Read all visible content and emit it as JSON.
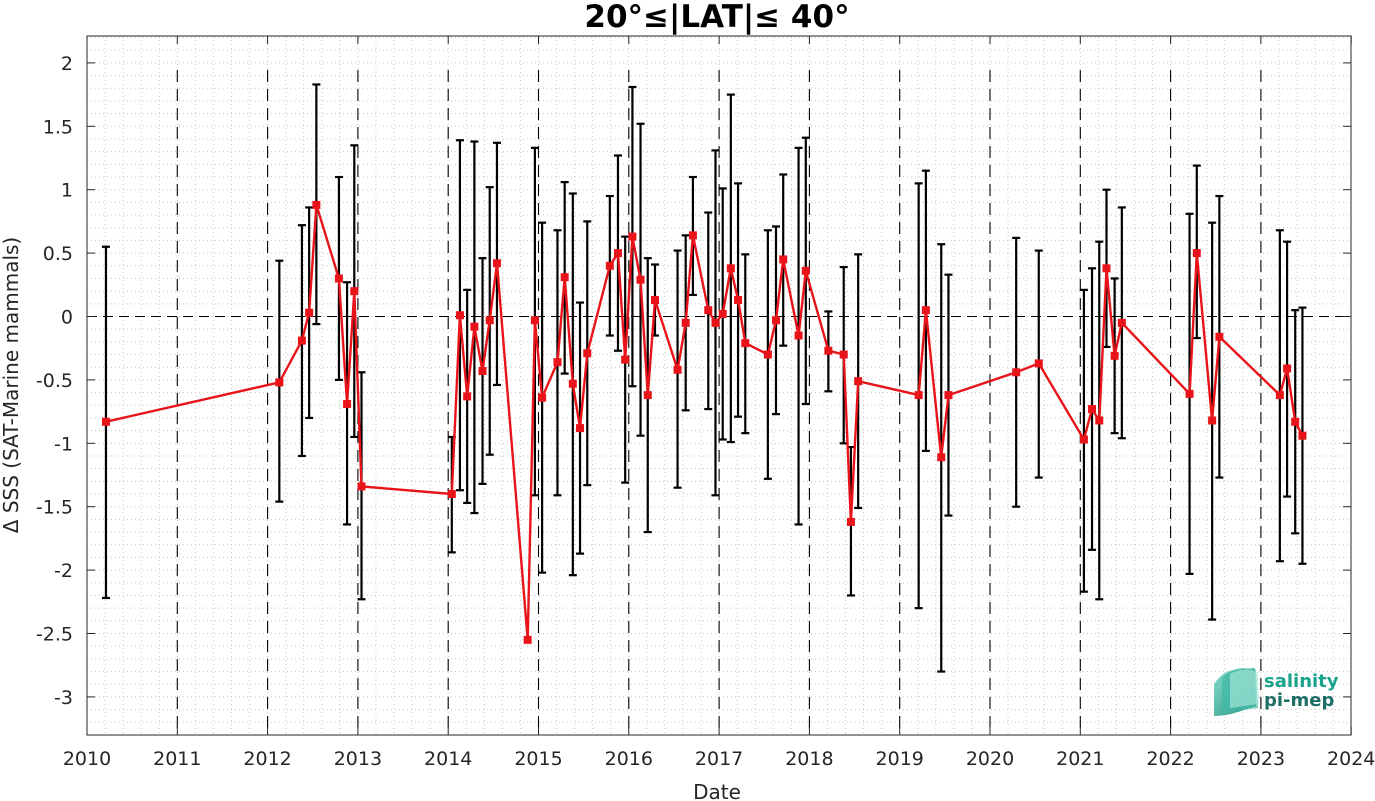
{
  "chart_data": {
    "type": "scatter",
    "title": "20°≤|LAT|≤ 40°",
    "xlabel": "Date",
    "ylabel": "Δ SSS (SAT-Marine mammals)",
    "xlim": [
      2010,
      2024
    ],
    "ylim": [
      -3.3,
      2.25
    ],
    "xticks": [
      2010,
      2011,
      2012,
      2013,
      2014,
      2015,
      2016,
      2017,
      2018,
      2019,
      2020,
      2021,
      2022,
      2023,
      2024
    ],
    "xtick_labels": [
      "2010",
      "2011",
      "2012",
      "2013",
      "2014",
      "2015",
      "2016",
      "2017",
      "2018",
      "2019",
      "2020",
      "2021",
      "2022",
      "2023",
      "2024"
    ],
    "yticks": [
      2,
      1.5,
      1,
      0.5,
      0,
      -0.5,
      -1,
      -1.5,
      -2,
      -2.5,
      -3
    ],
    "ytick_labels": [
      "2",
      "1.5",
      "1",
      "0.5",
      "0",
      "-0.5",
      "-1",
      "-1.5",
      "-2",
      "-2.5",
      "-3"
    ],
    "grid": "minor dotted",
    "zero_line": true,
    "year_boundaries": [
      2011,
      2012,
      2013,
      2014,
      2015,
      2016,
      2017,
      2018,
      2019,
      2020,
      2021,
      2022,
      2023
    ],
    "series": [
      {
        "line_color": "#e8141a",
        "errorbar_color": "#000000",
        "points": [
          {
            "x": 2010.21,
            "y": -0.83,
            "lo": -2.22,
            "hi": 0.55
          },
          {
            "x": 2012.13,
            "y": -0.52,
            "lo": -1.46,
            "hi": 0.44
          },
          {
            "x": 2012.38,
            "y": -0.19,
            "lo": -1.1,
            "hi": 0.72
          },
          {
            "x": 2012.46,
            "y": 0.03,
            "lo": -0.8,
            "hi": 0.86
          },
          {
            "x": 2012.54,
            "y": 0.88,
            "lo": -0.06,
            "hi": 1.83
          },
          {
            "x": 2012.79,
            "y": 0.3,
            "lo": -0.5,
            "hi": 1.1
          },
          {
            "x": 2012.88,
            "y": -0.69,
            "lo": -1.64,
            "hi": 0.27
          },
          {
            "x": 2012.96,
            "y": 0.2,
            "lo": -0.95,
            "hi": 1.35
          },
          {
            "x": 2013.04,
            "y": -1.34,
            "lo": -2.23,
            "hi": -0.44
          },
          {
            "x": 2014.04,
            "y": -1.4,
            "lo": -1.86,
            "hi": -0.95
          },
          {
            "x": 2014.13,
            "y": 0.01,
            "lo": -1.37,
            "hi": 1.39
          },
          {
            "x": 2014.21,
            "y": -0.63,
            "lo": -1.47,
            "hi": 0.21
          },
          {
            "x": 2014.29,
            "y": -0.08,
            "lo": -1.55,
            "hi": 1.38
          },
          {
            "x": 2014.38,
            "y": -0.43,
            "lo": -1.32,
            "hi": 0.46
          },
          {
            "x": 2014.46,
            "y": -0.03,
            "lo": -1.09,
            "hi": 1.02
          },
          {
            "x": 2014.54,
            "y": 0.42,
            "lo": -0.54,
            "hi": 1.37
          },
          {
            "x": 2014.88,
            "y": -2.55,
            "lo": -2.55,
            "hi": -2.55
          },
          {
            "x": 2014.96,
            "y": -0.03,
            "lo": -1.41,
            "hi": 1.33
          },
          {
            "x": 2015.04,
            "y": -0.64,
            "lo": -2.02,
            "hi": 0.74
          },
          {
            "x": 2015.21,
            "y": -0.36,
            "lo": -1.41,
            "hi": 0.68
          },
          {
            "x": 2015.29,
            "y": 0.31,
            "lo": -0.45,
            "hi": 1.06
          },
          {
            "x": 2015.38,
            "y": -0.53,
            "lo": -2.04,
            "hi": 0.97
          },
          {
            "x": 2015.46,
            "y": -0.88,
            "lo": -1.87,
            "hi": 0.11
          },
          {
            "x": 2015.54,
            "y": -0.29,
            "lo": -1.33,
            "hi": 0.75
          },
          {
            "x": 2015.79,
            "y": 0.4,
            "lo": -0.15,
            "hi": 0.95
          },
          {
            "x": 2015.88,
            "y": 0.5,
            "lo": -0.27,
            "hi": 1.27
          },
          {
            "x": 2015.96,
            "y": -0.34,
            "lo": -1.31,
            "hi": 0.63
          },
          {
            "x": 2016.04,
            "y": 0.63,
            "lo": -0.55,
            "hi": 1.81
          },
          {
            "x": 2016.13,
            "y": 0.29,
            "lo": -0.94,
            "hi": 1.52
          },
          {
            "x": 2016.21,
            "y": -0.62,
            "lo": -1.7,
            "hi": 0.46
          },
          {
            "x": 2016.29,
            "y": 0.13,
            "lo": -0.15,
            "hi": 0.41
          },
          {
            "x": 2016.54,
            "y": -0.42,
            "lo": -1.35,
            "hi": 0.52
          },
          {
            "x": 2016.63,
            "y": -0.05,
            "lo": -0.74,
            "hi": 0.64
          },
          {
            "x": 2016.71,
            "y": 0.64,
            "lo": 0.17,
            "hi": 1.1
          },
          {
            "x": 2016.88,
            "y": 0.05,
            "lo": -0.73,
            "hi": 0.82
          },
          {
            "x": 2016.96,
            "y": -0.05,
            "lo": -1.41,
            "hi": 1.31
          },
          {
            "x": 2017.04,
            "y": 0.02,
            "lo": -0.97,
            "hi": 1.01
          },
          {
            "x": 2017.13,
            "y": 0.38,
            "lo": -0.99,
            "hi": 1.75
          },
          {
            "x": 2017.21,
            "y": 0.13,
            "lo": -0.79,
            "hi": 1.05
          },
          {
            "x": 2017.29,
            "y": -0.21,
            "lo": -0.92,
            "hi": 0.49
          },
          {
            "x": 2017.54,
            "y": -0.3,
            "lo": -1.28,
            "hi": 0.68
          },
          {
            "x": 2017.63,
            "y": -0.03,
            "lo": -0.77,
            "hi": 0.71
          },
          {
            "x": 2017.71,
            "y": 0.45,
            "lo": -0.23,
            "hi": 1.12
          },
          {
            "x": 2017.88,
            "y": -0.15,
            "lo": -1.64,
            "hi": 1.33
          },
          {
            "x": 2017.96,
            "y": 0.36,
            "lo": -0.69,
            "hi": 1.41
          },
          {
            "x": 2018.21,
            "y": -0.27,
            "lo": -0.59,
            "hi": 0.04
          },
          {
            "x": 2018.38,
            "y": -0.3,
            "lo": -1.0,
            "hi": 0.39
          },
          {
            "x": 2018.46,
            "y": -1.62,
            "lo": -2.2,
            "hi": -1.03
          },
          {
            "x": 2018.54,
            "y": -0.51,
            "lo": -1.51,
            "hi": 0.49
          },
          {
            "x": 2019.21,
            "y": -0.62,
            "lo": -2.3,
            "hi": 1.05
          },
          {
            "x": 2019.29,
            "y": 0.05,
            "lo": -1.06,
            "hi": 1.15
          },
          {
            "x": 2019.46,
            "y": -1.11,
            "lo": -2.8,
            "hi": 0.57
          },
          {
            "x": 2019.54,
            "y": -0.62,
            "lo": -1.57,
            "hi": 0.33
          },
          {
            "x": 2020.29,
            "y": -0.44,
            "lo": -1.5,
            "hi": 0.62
          },
          {
            "x": 2020.54,
            "y": -0.37,
            "lo": -1.27,
            "hi": 0.52
          },
          {
            "x": 2021.04,
            "y": -0.97,
            "lo": -2.17,
            "hi": 0.21
          },
          {
            "x": 2021.13,
            "y": -0.73,
            "lo": -1.84,
            "hi": 0.38
          },
          {
            "x": 2021.21,
            "y": -0.82,
            "lo": -2.23,
            "hi": 0.59
          },
          {
            "x": 2021.29,
            "y": 0.38,
            "lo": -0.24,
            "hi": 1.0
          },
          {
            "x": 2021.38,
            "y": -0.31,
            "lo": -0.92,
            "hi": 0.3
          },
          {
            "x": 2021.46,
            "y": -0.05,
            "lo": -0.96,
            "hi": 0.86
          },
          {
            "x": 2022.21,
            "y": -0.61,
            "lo": -2.03,
            "hi": 0.81
          },
          {
            "x": 2022.29,
            "y": 0.5,
            "lo": -0.17,
            "hi": 1.19
          },
          {
            "x": 2022.46,
            "y": -0.82,
            "lo": -2.39,
            "hi": 0.74
          },
          {
            "x": 2022.54,
            "y": -0.16,
            "lo": -1.27,
            "hi": 0.95
          },
          {
            "x": 2023.21,
            "y": -0.62,
            "lo": -1.93,
            "hi": 0.68
          },
          {
            "x": 2023.29,
            "y": -0.41,
            "lo": -1.42,
            "hi": 0.59
          },
          {
            "x": 2023.38,
            "y": -0.83,
            "lo": -1.71,
            "hi": 0.05
          },
          {
            "x": 2023.46,
            "y": -0.94,
            "lo": -1.95,
            "hi": 0.07
          }
        ]
      }
    ]
  },
  "logo": {
    "line1": "salinity",
    "line2": "pi-mep",
    "color_text": "#1aa38c",
    "color_dark": "#1d6e66"
  }
}
